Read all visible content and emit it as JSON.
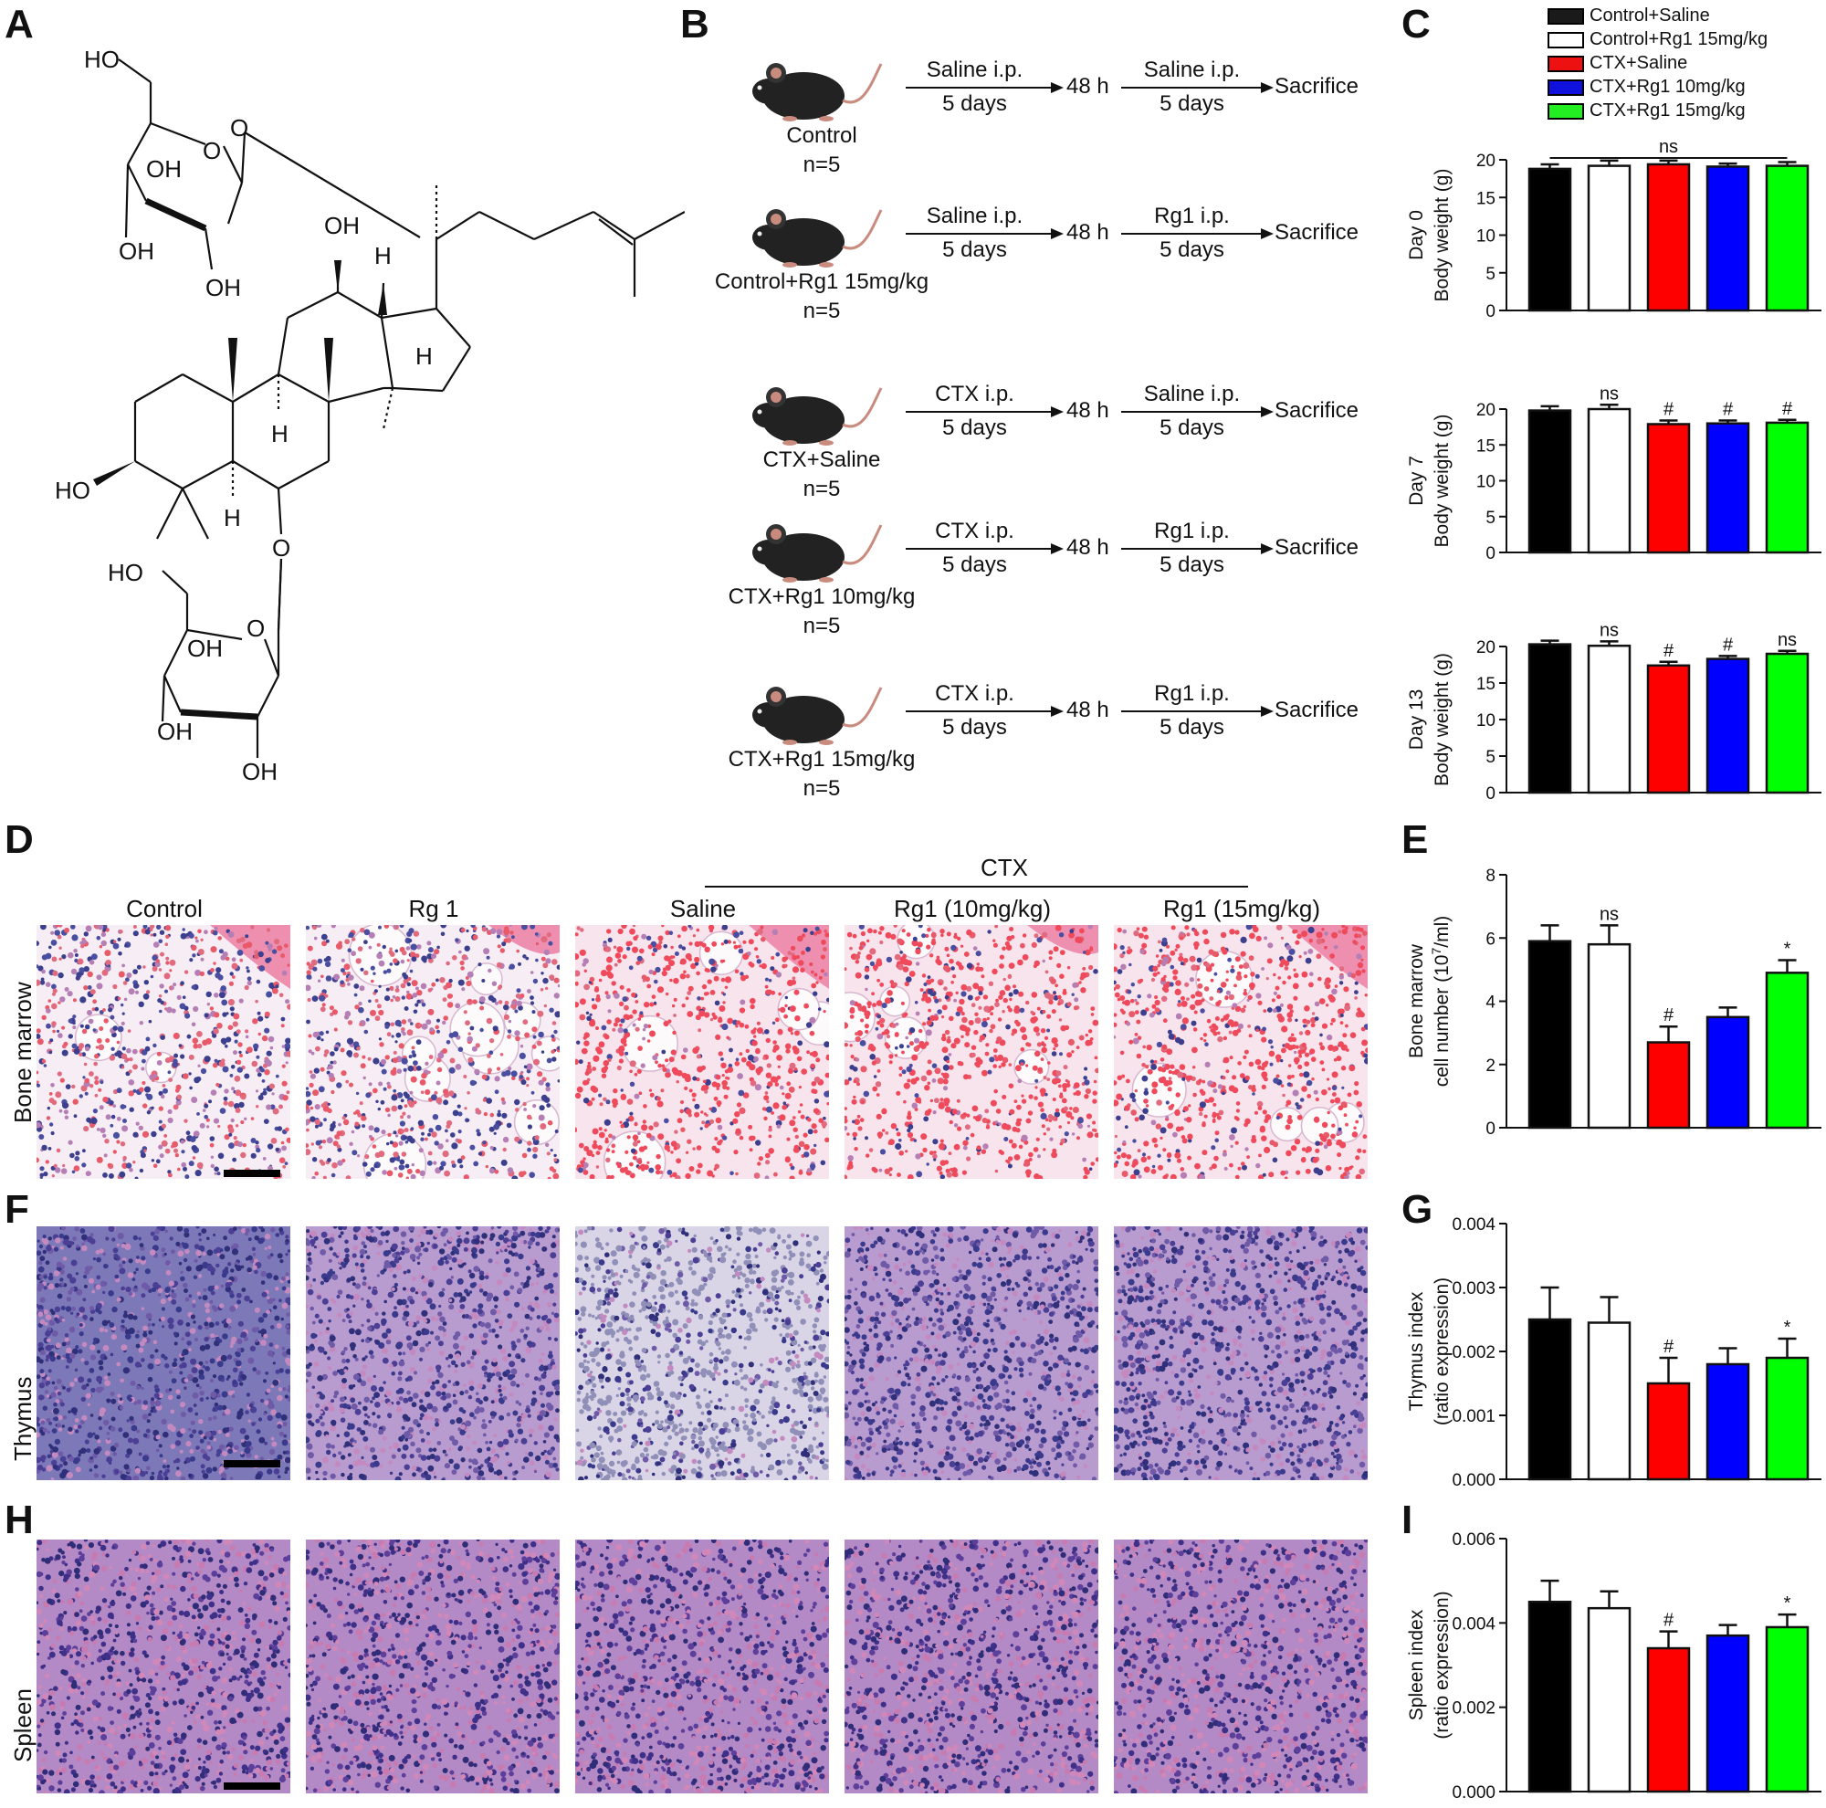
{
  "panel_letters": {
    "A": "A",
    "B": "B",
    "C": "C",
    "D": "D",
    "E": "E",
    "F": "F",
    "G": "G",
    "H": "H",
    "I": "I"
  },
  "panelA": {
    "atoms": {
      "ho1": "HO",
      "o_ring1": "O",
      "o_link1": "O",
      "oh1": "OH",
      "oh2": "OH",
      "oh3": "OH",
      "oh12": "OH",
      "h1": "H",
      "h2": "H",
      "h3": "H",
      "h4": "H",
      "ho3": "HO",
      "o_link2": "O",
      "ho2": "HO",
      "o_ring2": "O",
      "oh4": "OH",
      "oh5": "OH",
      "oh6": "OH"
    }
  },
  "panelB": {
    "groups": [
      {
        "name": "Control",
        "n": "n=5",
        "step1": "Saline i.p.",
        "days1": "5 days",
        "gap": "48 h",
        "step2": "Saline i.p.",
        "days2": "5 days",
        "end": "Sacrifice"
      },
      {
        "name": "Control+Rg1 15mg/kg",
        "n": "n=5",
        "step1": "Saline i.p.",
        "days1": "5 days",
        "gap": "48 h",
        "step2": "Rg1 i.p.",
        "days2": "5 days",
        "end": "Sacrifice"
      },
      {
        "name": "CTX+Saline",
        "n": "n=5",
        "step1": "CTX i.p.",
        "days1": "5 days",
        "gap": "48 h",
        "step2": "Saline i.p.",
        "days2": "5 days",
        "end": "Sacrifice"
      },
      {
        "name": "CTX+Rg1 10mg/kg",
        "n": "n=5",
        "step1": "CTX i.p.",
        "days1": "5 days",
        "gap": "48 h",
        "step2": "Rg1 i.p.",
        "days2": "5 days",
        "end": "Sacrifice"
      },
      {
        "name": "CTX+Rg1 15mg/kg",
        "n": "n=5",
        "step1": "CTX i.p.",
        "days1": "5 days",
        "gap": "48 h",
        "step2": "Rg1 i.p.",
        "days2": "5 days",
        "end": "Sacrifice"
      }
    ]
  },
  "legend": [
    {
      "label": "Control+Saline",
      "color": "#1a1a1a"
    },
    {
      "label": "Control+Rg1 15mg/kg",
      "color": "#ffffff"
    },
    {
      "label": "CTX+Saline",
      "color": "#ee1111"
    },
    {
      "label": "CTX+Rg1 10mg/kg",
      "color": "#1111dd"
    },
    {
      "label": "CTX+Rg1 15mg/kg",
      "color": "#22ee22"
    }
  ],
  "colors": [
    "#000000",
    "#ffffff",
    "#ff0000",
    "#0000ff",
    "#00ff00"
  ],
  "panelD": {
    "ctx_header": "CTX",
    "columns": [
      "Control",
      "Rg 1",
      "Saline",
      "Rg1 (10mg/kg)",
      "Rg1 (15mg/kg)"
    ],
    "rows": [
      "Bone marrow",
      "Thymus",
      "Spleen"
    ]
  },
  "chart_data": [
    {
      "id": "C0",
      "type": "bar",
      "categories": [
        "Control+Saline",
        "Control+Rg1 15mg/kg",
        "CTX+Saline",
        "CTX+Rg1 10mg/kg",
        "CTX+Rg1 15mg/kg"
      ],
      "values": [
        18.8,
        19.2,
        19.4,
        19.1,
        19.2
      ],
      "errors": [
        0.6,
        0.7,
        0.5,
        0.4,
        0.5
      ],
      "ylabel": [
        "Day 0",
        "Body weight (g)"
      ],
      "ylim": [
        0,
        20
      ],
      "yticks": [
        "0",
        "5",
        "10",
        "15",
        "20"
      ],
      "annotations": [
        "",
        "",
        "",
        "",
        ""
      ],
      "bracket": "ns"
    },
    {
      "id": "C7",
      "type": "bar",
      "categories": [
        "Control+Saline",
        "Control+Rg1 15mg/kg",
        "CTX+Saline",
        "CTX+Rg1 10mg/kg",
        "CTX+Rg1 15mg/kg"
      ],
      "values": [
        19.8,
        20.0,
        17.9,
        18.0,
        18.1
      ],
      "errors": [
        0.6,
        0.6,
        0.5,
        0.4,
        0.4
      ],
      "ylabel": [
        "Day 7",
        "Body weight (g)"
      ],
      "ylim": [
        0,
        20
      ],
      "yticks": [
        "0",
        "5",
        "10",
        "15",
        "20"
      ],
      "annotations": [
        "",
        "ns",
        "#",
        "#",
        "#"
      ]
    },
    {
      "id": "C13",
      "type": "bar",
      "categories": [
        "Control+Saline",
        "Control+Rg1 15mg/kg",
        "CTX+Saline",
        "CTX+Rg1 10mg/kg",
        "CTX+Rg1 15mg/kg"
      ],
      "values": [
        20.3,
        20.1,
        17.4,
        18.3,
        19.0
      ],
      "errors": [
        0.5,
        0.6,
        0.5,
        0.4,
        0.4
      ],
      "ylabel": [
        "Day 13",
        "Body weight (g)"
      ],
      "ylim": [
        0,
        20
      ],
      "yticks": [
        "0",
        "5",
        "10",
        "15",
        "20"
      ],
      "annotations": [
        "",
        "ns",
        "#",
        "#",
        "ns"
      ]
    },
    {
      "id": "E",
      "type": "bar",
      "categories": [
        "Control+Saline",
        "Control+Rg1 15mg/kg",
        "CTX+Saline",
        "CTX+Rg1 10mg/kg",
        "CTX+Rg1 15mg/kg"
      ],
      "values": [
        5.9,
        5.8,
        2.7,
        3.5,
        4.9
      ],
      "errors": [
        0.5,
        0.6,
        0.5,
        0.3,
        0.4
      ],
      "ylabel": [
        "Bone marrow",
        "cell number (10",
        "7",
        "/ml)"
      ],
      "ylim": [
        0,
        8
      ],
      "yticks": [
        "0",
        "2",
        "4",
        "6",
        "8"
      ],
      "annotations": [
        "",
        "ns",
        "#",
        "",
        "*"
      ]
    },
    {
      "id": "G",
      "type": "bar",
      "categories": [
        "Control+Saline",
        "Control+Rg1 15mg/kg",
        "CTX+Saline",
        "CTX+Rg1 10mg/kg",
        "CTX+Rg1 15mg/kg"
      ],
      "values": [
        0.0025,
        0.00245,
        0.0015,
        0.0018,
        0.0019
      ],
      "errors": [
        0.0005,
        0.0004,
        0.0004,
        0.00025,
        0.0003
      ],
      "ylabel": [
        "Thymus index",
        "(ratio expression)"
      ],
      "ylim": [
        0,
        0.004
      ],
      "yticks": [
        "0.000",
        "0.001",
        "0.002",
        "0.003",
        "0.004"
      ],
      "annotations": [
        "",
        "",
        "#",
        "",
        "*"
      ]
    },
    {
      "id": "I",
      "type": "bar",
      "categories": [
        "Control+Saline",
        "Control+Rg1 15mg/kg",
        "CTX+Saline",
        "CTX+Rg1 10mg/kg",
        "CTX+Rg1 15mg/kg"
      ],
      "values": [
        0.0045,
        0.00435,
        0.0034,
        0.0037,
        0.0039
      ],
      "errors": [
        0.0005,
        0.0004,
        0.0004,
        0.00025,
        0.0003
      ],
      "ylabel": [
        "Spleen index",
        "(ratio expression)"
      ],
      "ylim": [
        0,
        0.006
      ],
      "yticks": [
        "0.000",
        "0.002",
        "0.004",
        "0.006"
      ],
      "annotations": [
        "",
        "",
        "#",
        "",
        "*"
      ]
    }
  ]
}
